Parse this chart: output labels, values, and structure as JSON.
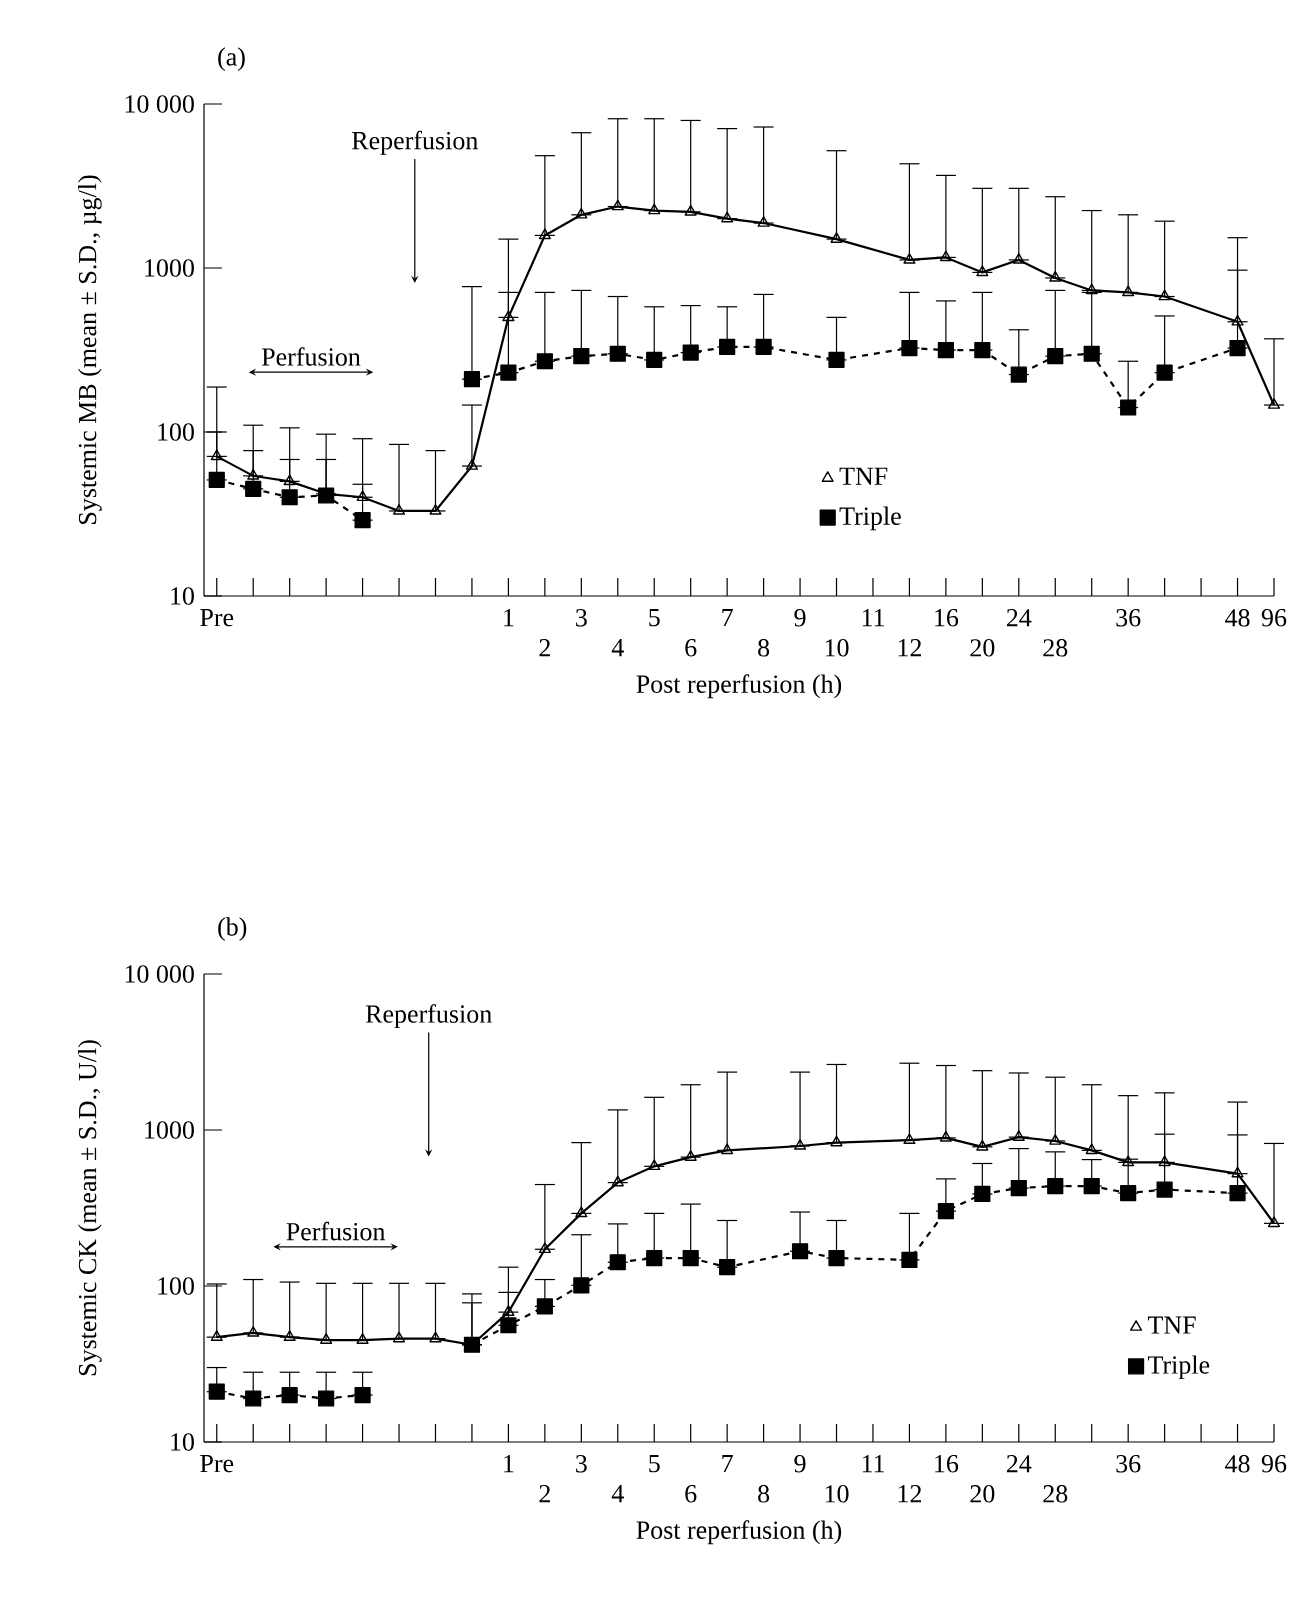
{
  "chart_data": [
    {
      "type": "line",
      "title": "(a)",
      "xlabel": "Post reperfusion (h)",
      "ylabel": "Systemic MB (mean ± S.D., µg/l)",
      "log": "y",
      "legend": "bottom",
      "ylim": [
        10,
        10000
      ],
      "yticks": [
        10,
        100,
        1000,
        {
          "value": 10000,
          "label": "10 000"
        }
      ],
      "categories": [
        "Pre",
        null,
        null,
        null,
        null,
        null,
        null,
        null,
        "1",
        "2",
        "3",
        "4",
        "5",
        "6",
        "7",
        "8",
        "9",
        "10",
        "11",
        "12",
        "16",
        "20",
        "24",
        "28",
        null,
        "36",
        null,
        null,
        "48",
        "96"
      ],
      "annotations": [
        "Reperfusion",
        "Perfusion"
      ],
      "series": [
        {
          "name": "TNF",
          "color": "#000000",
          "marker": "triangle",
          "line_style": "solid",
          "values": [
            71,
            54,
            50,
            42,
            40,
            33,
            33,
            62,
            500,
            1580,
            2110,
            2370,
            2240,
            2200,
            2000,
            1880,
            null,
            1500,
            null,
            1120,
            1160,
            940,
            1120,
            870,
            730,
            710,
            670,
            null,
            470,
            146
          ],
          "errors": [
            [
              71,
              188
            ],
            [
              54,
              110
            ],
            [
              50,
              106
            ],
            [
              42,
              97
            ],
            [
              40,
              91
            ],
            [
              33,
              84
            ],
            [
              33,
              77
            ],
            [
              62,
              146
            ],
            [
              500,
              1500
            ],
            [
              1580,
              4840
            ],
            [
              2110,
              6680
            ],
            [
              2370,
              8130
            ],
            [
              2240,
              8130
            ],
            [
              2200,
              7940
            ],
            [
              2000,
              7080
            ],
            [
              1880,
              7240
            ],
            null,
            [
              1500,
              5190
            ],
            null,
            [
              1120,
              4320
            ],
            [
              1160,
              3670
            ],
            [
              940,
              3060
            ],
            [
              1120,
              3060
            ],
            [
              870,
              2720
            ],
            [
              730,
              2240
            ],
            [
              710,
              2110
            ],
            [
              670,
              1930
            ],
            null,
            [
              470,
              1530
            ],
            [
              146,
              370
            ]
          ]
        },
        {
          "name": "Triple",
          "color": "#000000",
          "marker": "square",
          "line_style": "dashed",
          "values": [
            null,
            null,
            null,
            null,
            null,
            null,
            null,
            210,
            230,
            270,
            290,
            300,
            275,
            305,
            330,
            330,
            null,
            275,
            null,
            325,
            316,
            316,
            224,
            290,
            300,
            141,
            230,
            null,
            325,
            null
          ],
          "errors": [
            null,
            null,
            null,
            null,
            null,
            null,
            null,
            [
              210,
              770
            ],
            [
              230,
              710
            ],
            [
              270,
              710
            ],
            [
              290,
              730
            ],
            [
              300,
              670
            ],
            [
              275,
              580
            ],
            [
              305,
              590
            ],
            [
              330,
              580
            ],
            [
              330,
              690
            ],
            null,
            [
              275,
              500
            ],
            null,
            [
              325,
              710
            ],
            [
              316,
              630
            ],
            [
              316,
              710
            ],
            [
              224,
              420
            ],
            [
              290,
              730
            ],
            [
              300,
              710
            ],
            [
              141,
              270
            ],
            [
              230,
              510
            ],
            null,
            [
              325,
              970
            ],
            null
          ]
        },
        {
          "color": "#000000",
          "marker": "square",
          "line_style": "dashed",
          "values": [
            51,
            45,
            40,
            41,
            29,
            null,
            null,
            null,
            null,
            null,
            null,
            null,
            null,
            null,
            null,
            null,
            null,
            null,
            null,
            null,
            null,
            null,
            null,
            null,
            null,
            null,
            null,
            null,
            null,
            null
          ],
          "errors": [
            [
              51,
              100
            ],
            [
              45,
              77
            ],
            [
              40,
              68
            ],
            [
              41,
              68
            ],
            [
              29,
              48
            ],
            null,
            null,
            null,
            null,
            null,
            null,
            null,
            null,
            null,
            null,
            null,
            null,
            null,
            null,
            null,
            null,
            null,
            null,
            null,
            null,
            null,
            null,
            null,
            null,
            null
          ]
        }
      ]
    },
    {
      "type": "line",
      "title": "(b)",
      "xlabel": "Post reperfusion (h)",
      "ylabel": "Systemic CK (mean ± S.D., U/l)",
      "log": "y",
      "legend": "bottom right",
      "ylim": [
        10,
        10000
      ],
      "yticks": [
        10,
        100,
        1000,
        {
          "value": 10000,
          "label": "10 000"
        }
      ],
      "categories": [
        "Pre",
        null,
        null,
        null,
        null,
        null,
        null,
        null,
        "1",
        "2",
        "3",
        "4",
        "5",
        "6",
        "7",
        "8",
        "9",
        "10",
        "11",
        "12",
        "16",
        "20",
        "24",
        "28",
        null,
        "36",
        null,
        null,
        "48",
        "96"
      ],
      "annotations": [
        "Reperfusion",
        "Perfusion"
      ],
      "series": [
        {
          "name": "TNF",
          "color": "#000000",
          "marker": "triangle",
          "line_style": "solid",
          "values": [
            47,
            50,
            47,
            45,
            45,
            46,
            46,
            42,
            68,
            172,
            292,
            460,
            585,
            670,
            740,
            null,
            790,
            830,
            null,
            860,
            890,
            780,
            900,
            850,
            740,
            620,
            620,
            null,
            525,
            252
          ],
          "errors": [
            [
              47,
              103
            ],
            [
              50,
              110
            ],
            [
              47,
              106
            ],
            [
              45,
              104
            ],
            [
              45,
              104
            ],
            [
              46,
              104
            ],
            [
              46,
              104
            ],
            [
              42,
              89
            ],
            [
              68,
              132
            ],
            [
              172,
              447
            ],
            [
              292,
              830
            ],
            [
              460,
              1345
            ],
            [
              585,
              1620
            ],
            [
              670,
              1950
            ],
            [
              740,
              2350
            ],
            null,
            [
              790,
              2350
            ],
            [
              830,
              2630
            ],
            null,
            [
              860,
              2680
            ],
            [
              890,
              2590
            ],
            [
              780,
              2400
            ],
            [
              900,
              2320
            ],
            [
              850,
              2180
            ],
            [
              740,
              1950
            ],
            [
              620,
              1660
            ],
            [
              620,
              1730
            ],
            null,
            [
              525,
              1510
            ],
            [
              252,
              820
            ]
          ]
        },
        {
          "name": "Triple",
          "color": "#000000",
          "marker": "square",
          "line_style": "dashed",
          "values": [
            null,
            null,
            null,
            null,
            null,
            null,
            null,
            42,
            56,
            74,
            101,
            142,
            151,
            151,
            132,
            null,
            167,
            151,
            null,
            147,
            302,
            389,
            424,
            437,
            437,
            394,
            415,
            null,
            394,
            null
          ],
          "errors": [
            null,
            null,
            null,
            null,
            null,
            null,
            null,
            [
              42,
              78
            ],
            [
              56,
              91
            ],
            [
              74,
              110
            ],
            [
              101,
              213
            ],
            [
              142,
              250
            ],
            [
              151,
              292
            ],
            [
              151,
              335
            ],
            [
              132,
              263
            ],
            null,
            [
              167,
              298
            ],
            [
              151,
              263
            ],
            null,
            [
              147,
              292
            ],
            [
              302,
              486
            ],
            [
              389,
              610
            ],
            [
              424,
              760
            ],
            [
              437,
              724
            ],
            [
              437,
              646
            ],
            [
              394,
              650
            ],
            [
              415,
              940
            ],
            null,
            [
              394,
              930
            ],
            null
          ]
        },
        {
          "color": "#000000",
          "marker": "square",
          "line_style": "dashed",
          "values": [
            21,
            19,
            20,
            19,
            20,
            null,
            null,
            null,
            null,
            null,
            null,
            null,
            null,
            null,
            null,
            null,
            null,
            null,
            null,
            null,
            null,
            null,
            null,
            null,
            null,
            null,
            null,
            null,
            null,
            null
          ],
          "errors": [
            [
              21,
              30
            ],
            [
              19,
              28
            ],
            [
              20,
              28
            ],
            [
              19,
              28
            ],
            [
              20,
              28
            ],
            null,
            null,
            null,
            null,
            null,
            null,
            null,
            null,
            null,
            null,
            null,
            null,
            null,
            null,
            null,
            null,
            null,
            null,
            null,
            null,
            null,
            null,
            null,
            null,
            null
          ]
        }
      ]
    }
  ]
}
